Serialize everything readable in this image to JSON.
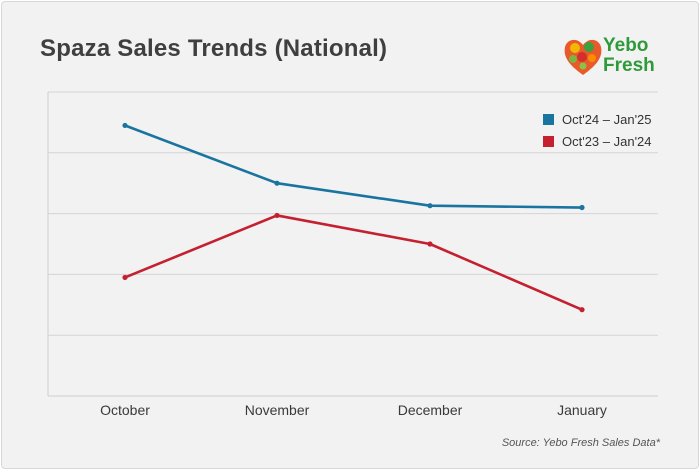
{
  "header": {
    "title": "Spaza Sales Trends (National)",
    "logo_line1": "Yebo",
    "logo_line2": "Fresh"
  },
  "footer": {
    "source": "Source: Yebo Fresh Sales Data*"
  },
  "colors": {
    "series_2024": "#1a74a0",
    "series_2023": "#c4202f",
    "grid": "#d4d4d4",
    "logo_green": "#2e9a3a"
  },
  "chart_data": {
    "type": "line",
    "title": "Spaza Sales Trends (National)",
    "xlabel": "",
    "ylabel": "",
    "categories": [
      "October",
      "November",
      "December",
      "January"
    ],
    "ylim": [
      0,
      5
    ],
    "grid": true,
    "legend_position": "top-right",
    "series": [
      {
        "name": "Oct'24 – Jan'25",
        "color": "#1a74a0",
        "values": [
          4.45,
          3.5,
          3.13,
          3.1
        ]
      },
      {
        "name": "Oct'23 – Jan'24",
        "color": "#c4202f",
        "values": [
          1.95,
          2.97,
          2.5,
          1.42
        ]
      }
    ]
  }
}
